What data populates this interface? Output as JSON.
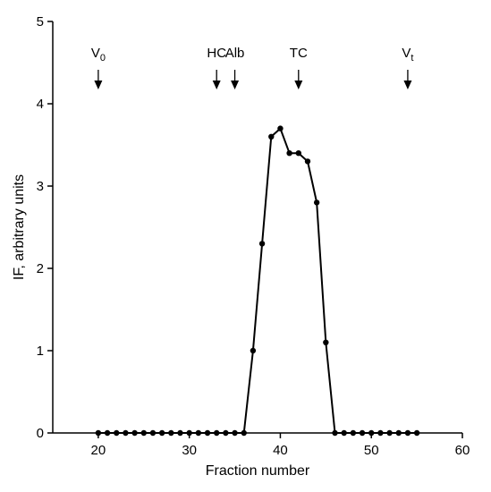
{
  "chart_data": {
    "type": "line",
    "xlabel": "Fraction number",
    "ylabel": "IF, arbitrary units",
    "xlim": [
      15,
      60
    ],
    "ylim": [
      0,
      5
    ],
    "xticks": [
      20,
      30,
      40,
      50,
      60
    ],
    "yticks": [
      0,
      1,
      2,
      3,
      4,
      5
    ],
    "grid": false,
    "series": [
      {
        "x": [
          20,
          21,
          22,
          23,
          24,
          25,
          26,
          27,
          28,
          29,
          30,
          31,
          32,
          33,
          34,
          35,
          36,
          37,
          38,
          39,
          40,
          41,
          42,
          43,
          44,
          45,
          46,
          47,
          48,
          49,
          50,
          51,
          52,
          53,
          54,
          55
        ],
        "y": [
          0,
          0,
          0,
          0,
          0,
          0,
          0,
          0,
          0,
          0,
          0,
          0,
          0,
          0,
          0,
          0,
          0,
          1.0,
          2.3,
          3.6,
          3.7,
          3.4,
          3.4,
          3.3,
          2.8,
          1.1,
          0,
          0,
          0,
          0,
          0,
          0,
          0,
          0,
          0,
          0
        ],
        "color": "#000000"
      }
    ],
    "annotations": [
      {
        "label": "V",
        "sub": "0",
        "x": 20,
        "arrow": "filled"
      },
      {
        "label": "HC",
        "sub": "",
        "x": 33,
        "arrow": "filled"
      },
      {
        "label": "Alb",
        "sub": "",
        "x": 35,
        "arrow": "filled"
      },
      {
        "label": "TC",
        "sub": "",
        "x": 42,
        "arrow": "filled"
      },
      {
        "label": "V",
        "sub": "t",
        "x": 54,
        "arrow": "filled"
      }
    ]
  }
}
